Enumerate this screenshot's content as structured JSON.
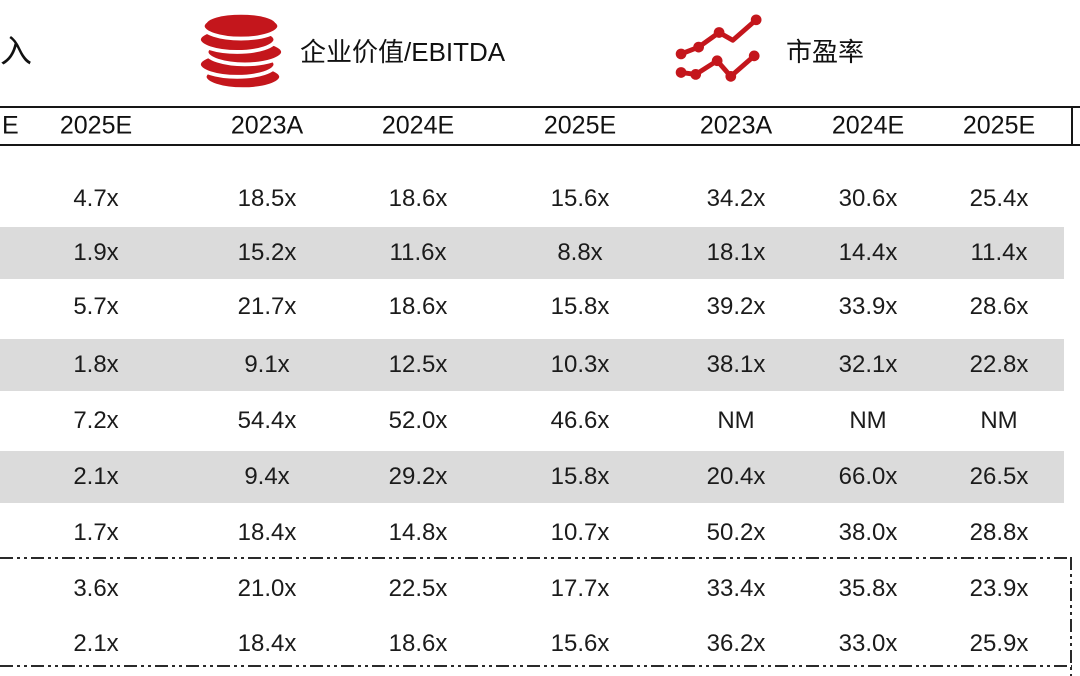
{
  "legend": {
    "left_partial_label": "入",
    "items": [
      {
        "icon": "coins-icon",
        "label": "企业价值/EBITDA"
      },
      {
        "icon": "line-chart-icon",
        "label": "市盈率"
      }
    ]
  },
  "table": {
    "header_partial": "E",
    "columns": [
      "2025E",
      "2023A",
      "2024E",
      "2025E",
      "2023A",
      "2024E",
      "2025E"
    ],
    "rows": [
      [
        "4.7x",
        "18.5x",
        "18.6x",
        "15.6x",
        "34.2x",
        "30.6x",
        "25.4x"
      ],
      [
        "1.9x",
        "15.2x",
        "11.6x",
        "8.8x",
        "18.1x",
        "14.4x",
        "11.4x"
      ],
      [
        "5.7x",
        "21.7x",
        "18.6x",
        "15.8x",
        "39.2x",
        "33.9x",
        "28.6x"
      ],
      [
        "1.8x",
        "9.1x",
        "12.5x",
        "10.3x",
        "38.1x",
        "32.1x",
        "22.8x"
      ],
      [
        "7.2x",
        "54.4x",
        "52.0x",
        "46.6x",
        "NM",
        "NM",
        "NM"
      ],
      [
        "2.1x",
        "9.4x",
        "29.2x",
        "15.8x",
        "20.4x",
        "66.0x",
        "26.5x"
      ],
      [
        "1.7x",
        "18.4x",
        "14.8x",
        "10.7x",
        "50.2x",
        "38.0x",
        "28.8x"
      ],
      [
        "3.6x",
        "21.0x",
        "22.5x",
        "17.7x",
        "33.4x",
        "35.8x",
        "23.9x"
      ],
      [
        "2.1x",
        "18.4x",
        "18.6x",
        "15.6x",
        "36.2x",
        "33.0x",
        "25.9x"
      ]
    ]
  },
  "colors": {
    "accent_red": "#C4161C",
    "row_alt_bg": "#DBDBDB",
    "line_color": "#161616",
    "text": "#1B1B1B"
  }
}
